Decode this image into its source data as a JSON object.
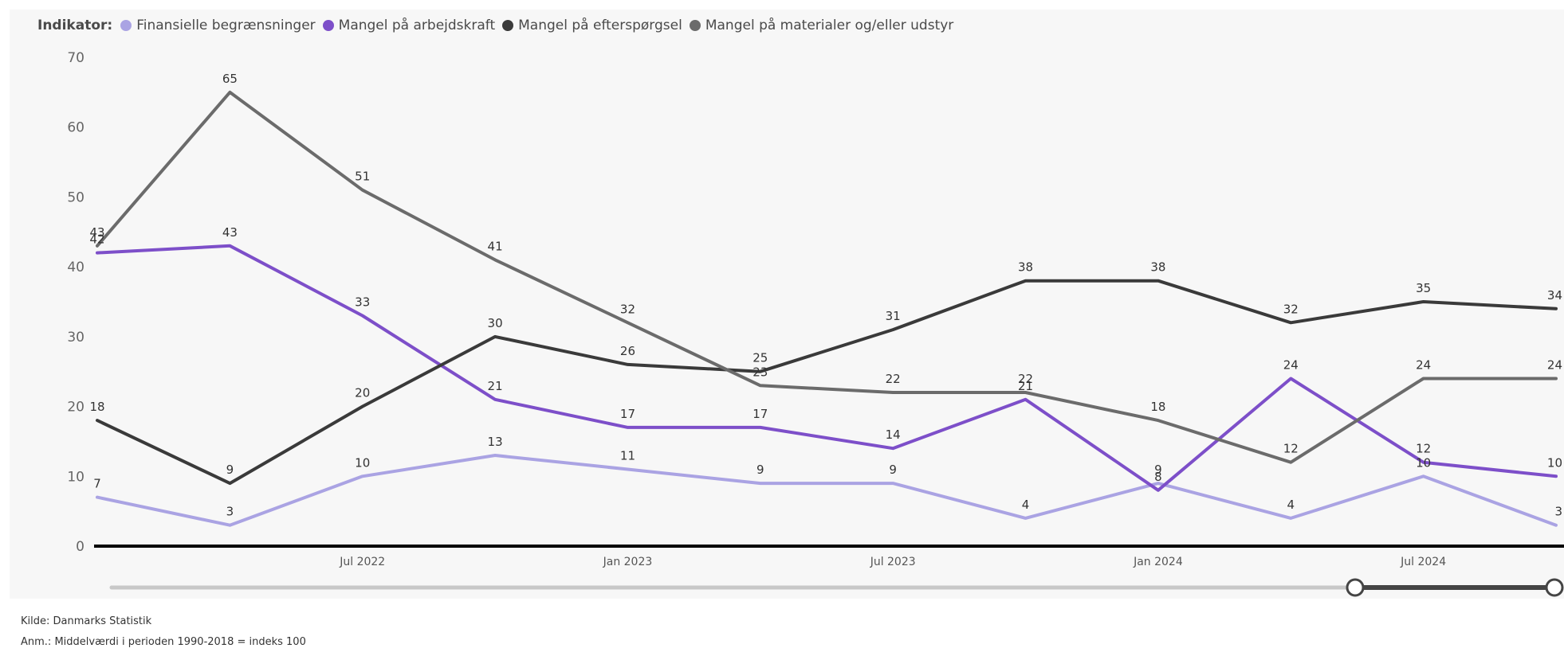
{
  "legend": {
    "label": "Indikator:"
  },
  "footer": {
    "source": "Kilde: Danmarks Statistik",
    "note": "Anm.: Middelværdi i perioden 1990-2018 = indeks 100"
  },
  "colors": {
    "axis": "#000000",
    "slider_track": "#c8c8c8",
    "slider_selected": "#444444"
  },
  "chart_data": {
    "type": "line",
    "x": [
      "2022-01",
      "2022-04",
      "2022-07",
      "2022-10",
      "2023-01",
      "2023-04",
      "2023-07",
      "2023-10",
      "2024-01",
      "2024-04",
      "2024-07",
      "2024-10"
    ],
    "x_tick_labels": [
      {
        "at": "2022-07",
        "label": "Jul 2022"
      },
      {
        "at": "2023-01",
        "label": "Jan 2023"
      },
      {
        "at": "2023-07",
        "label": "Jul 2023"
      },
      {
        "at": "2024-01",
        "label": "Jan 2024"
      },
      {
        "at": "2024-07",
        "label": "Jul 2024"
      }
    ],
    "ylim": [
      0,
      70
    ],
    "yticks": [
      0,
      10,
      20,
      30,
      40,
      50,
      60,
      70
    ],
    "grid": false,
    "legend_position": "top-left",
    "data_labels": true,
    "series": [
      {
        "name": "Finansielle begrænsninger",
        "color": "#aaa3e3",
        "values": [
          7,
          3,
          10,
          13,
          11,
          9,
          9,
          4,
          9,
          4,
          10,
          3
        ]
      },
      {
        "name": "Mangel på arbejdskraft",
        "color": "#7d4fc9",
        "values": [
          42,
          43,
          33,
          21,
          17,
          17,
          14,
          21,
          8,
          24,
          12,
          10
        ]
      },
      {
        "name": "Mangel på efterspørgsel",
        "color": "#3a3a3a",
        "values": [
          18,
          9,
          20,
          30,
          26,
          25,
          31,
          38,
          38,
          32,
          35,
          34
        ]
      },
      {
        "name": "Mangel på materialer og/eller udstyr",
        "color": "#6b6b6b",
        "values": [
          43,
          65,
          51,
          41,
          32,
          23,
          22,
          22,
          18,
          12,
          24,
          24
        ]
      }
    ]
  }
}
